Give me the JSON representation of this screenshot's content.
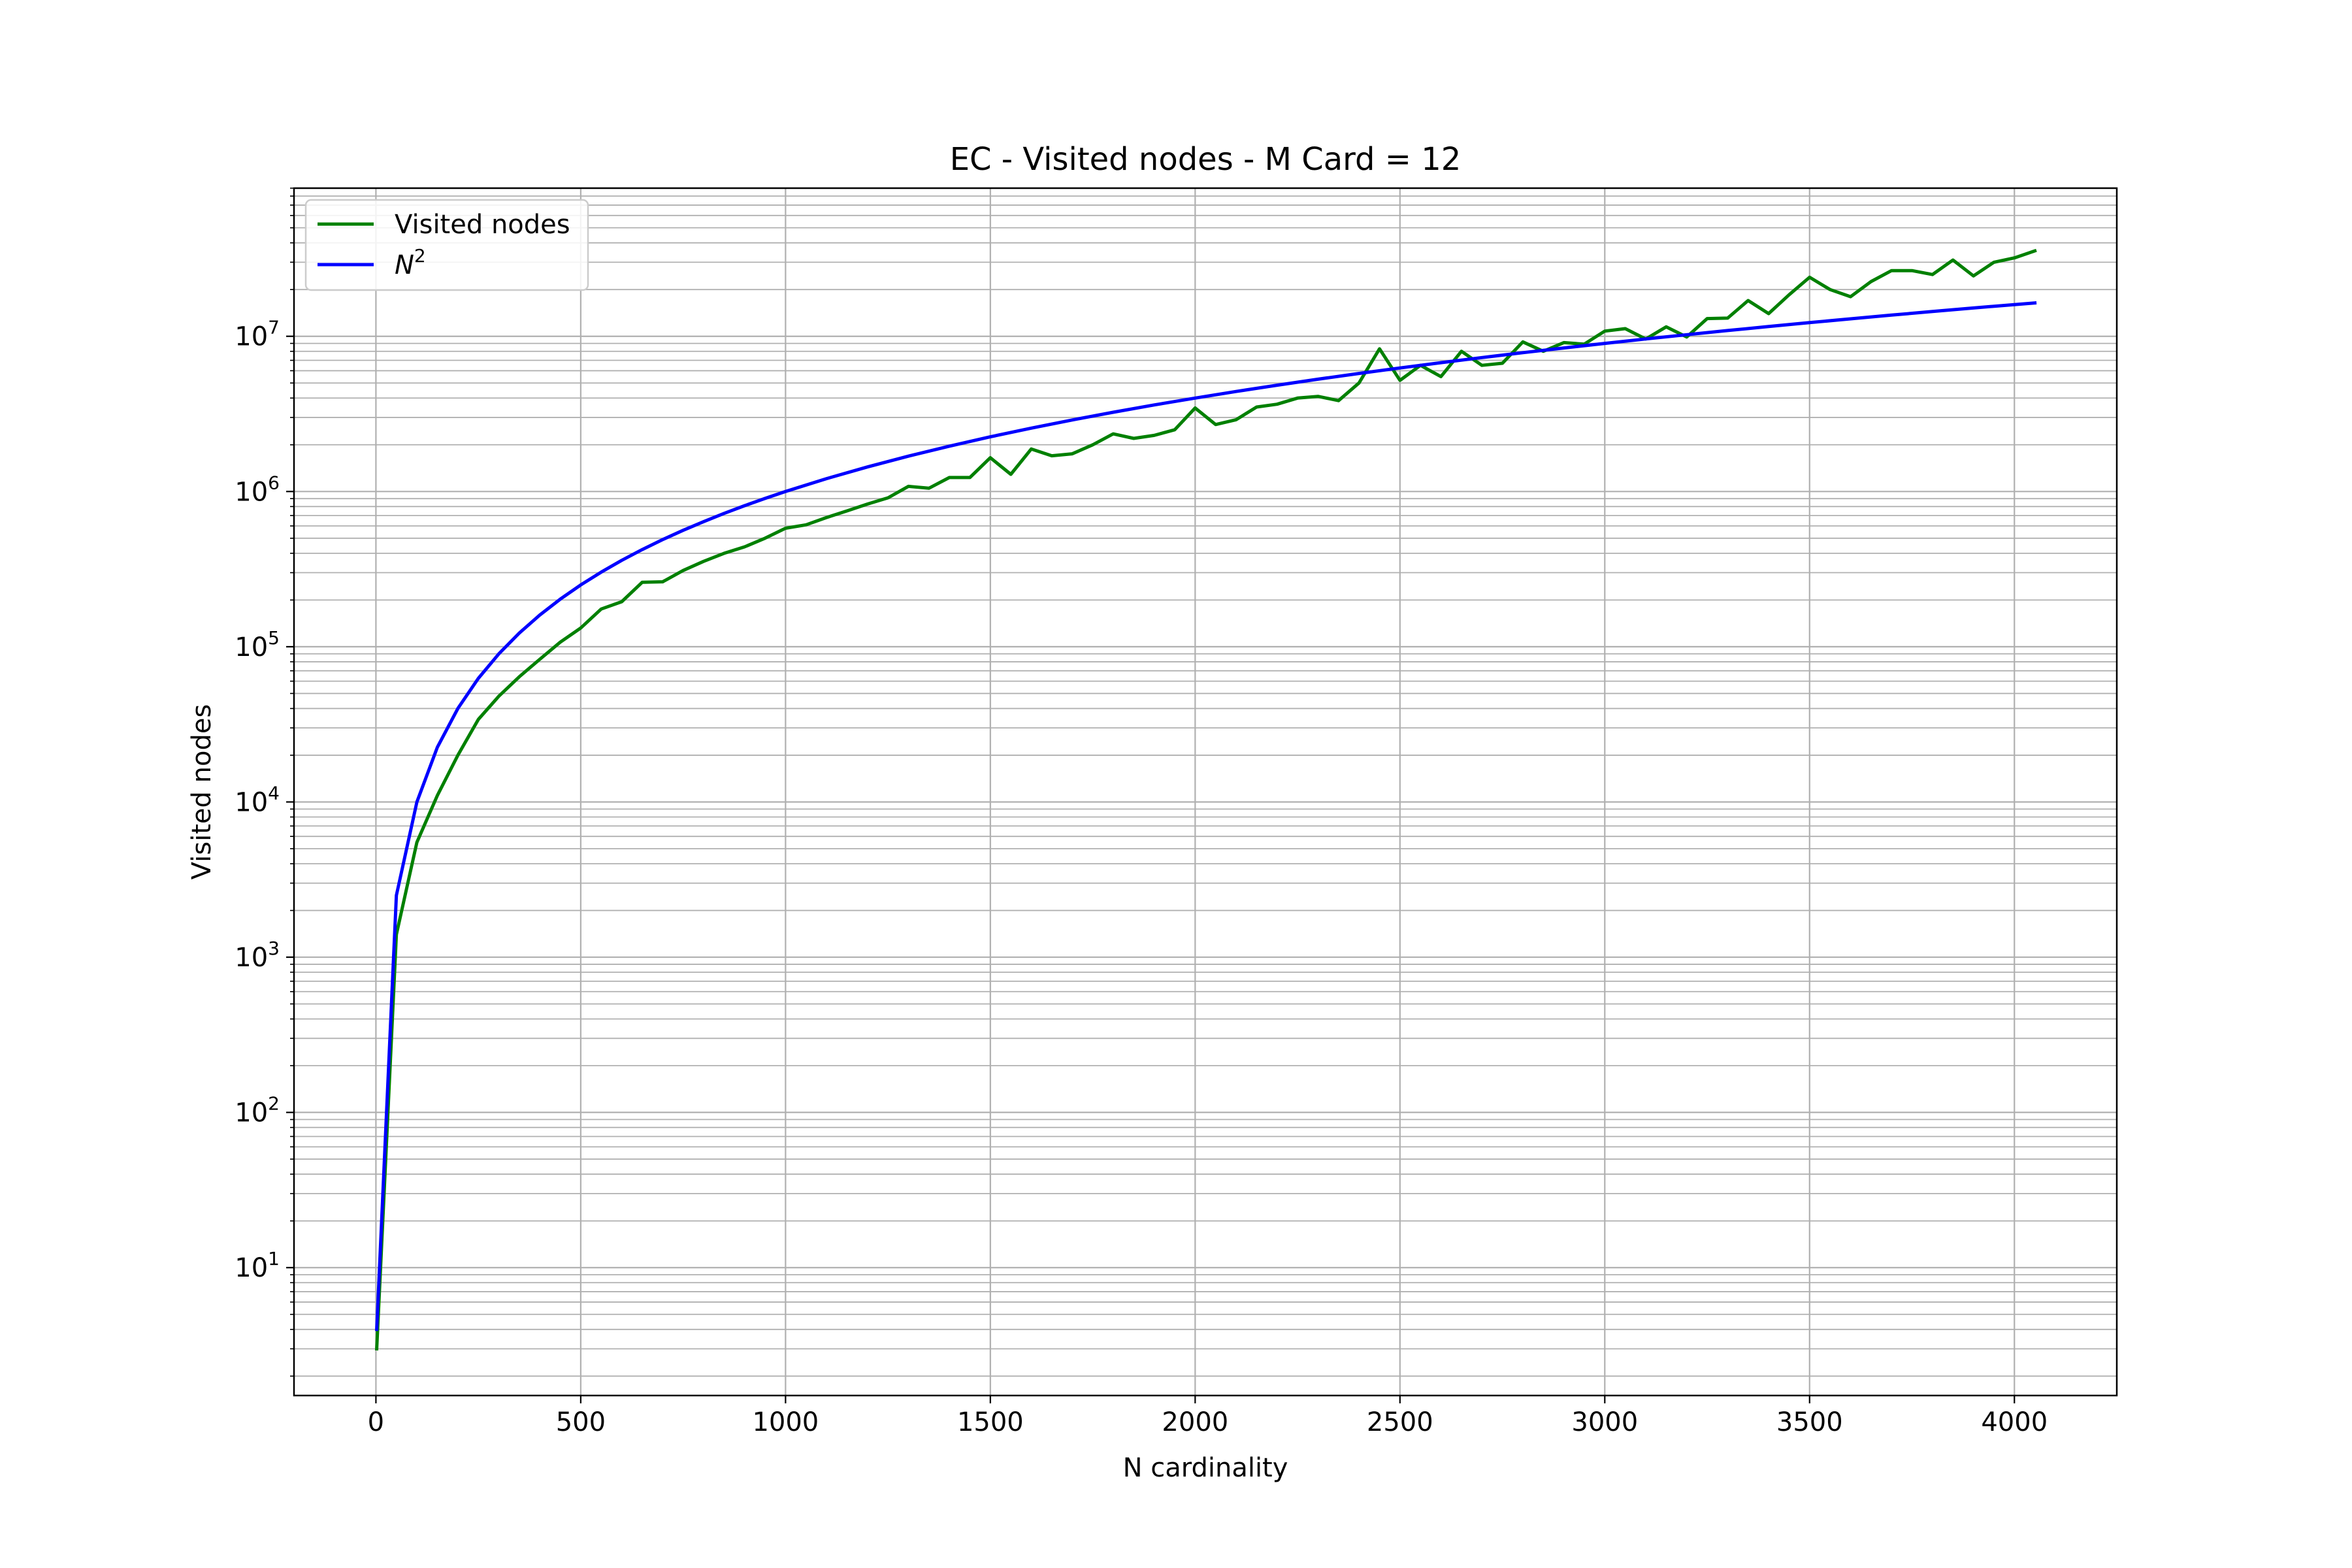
{
  "chart_data": {
    "type": "line",
    "title": "EC - Visited nodes - M Card = 12",
    "xlabel": "N cardinality",
    "ylabel": "Visited nodes",
    "xlim": [
      -200,
      4250
    ],
    "ylim": [
      1.5,
      90000000
    ],
    "yscale": "log",
    "grid": true,
    "legend_position": "upper left",
    "x_ticks": [
      0,
      500,
      1000,
      1500,
      2000,
      2500,
      3000,
      3500,
      4000
    ],
    "x_tick_labels": [
      "0",
      "500",
      "1000",
      "1500",
      "2000",
      "2500",
      "3000",
      "3500",
      "4000"
    ],
    "y_ticks": [
      10,
      100,
      1000,
      10000,
      100000,
      1000000,
      10000000
    ],
    "y_tick_labels": [
      {
        "base": "10",
        "exp": "1"
      },
      {
        "base": "10",
        "exp": "2"
      },
      {
        "base": "10",
        "exp": "3"
      },
      {
        "base": "10",
        "exp": "4"
      },
      {
        "base": "10",
        "exp": "5"
      },
      {
        "base": "10",
        "exp": "6"
      },
      {
        "base": "10",
        "exp": "7"
      }
    ],
    "series": [
      {
        "name": "Visited nodes",
        "color": "#008000",
        "x": [
          2,
          50,
          100,
          150,
          200,
          250,
          300,
          350,
          400,
          450,
          500,
          550,
          600,
          650,
          700,
          750,
          800,
          850,
          900,
          950,
          1000,
          1050,
          1100,
          1150,
          1200,
          1250,
          1300,
          1350,
          1400,
          1450,
          1500,
          1550,
          1600,
          1650,
          1700,
          1750,
          1800,
          1850,
          1900,
          1950,
          2000,
          2050,
          2100,
          2150,
          2200,
          2250,
          2300,
          2350,
          2400,
          2450,
          2500,
          2550,
          2600,
          2650,
          2700,
          2750,
          2800,
          2850,
          2900,
          2950,
          3000,
          3050,
          3100,
          3150,
          3200,
          3250,
          3300,
          3350,
          3400,
          3450,
          3500,
          3550,
          3600,
          3650,
          3700,
          3750,
          3800,
          3850,
          3900,
          3950,
          4000,
          4050
        ],
        "y": [
          3,
          1400,
          5500,
          11000,
          20000,
          34000,
          48000,
          64000,
          83000,
          107000,
          132000,
          175000,
          195000,
          260000,
          262000,
          310000,
          355000,
          400000,
          440000,
          500000,
          580000,
          610000,
          680000,
          750000,
          830000,
          910000,
          1080000,
          1050000,
          1230000,
          1230000,
          1650000,
          1290000,
          1880000,
          1700000,
          1750000,
          2000000,
          2350000,
          2200000,
          2300000,
          2500000,
          3450000,
          2700000,
          2900000,
          3500000,
          3650000,
          4000000,
          4100000,
          3850000,
          5000000,
          8300000,
          5200000,
          6500000,
          5500000,
          8000000,
          6500000,
          6700000,
          9200000,
          8000000,
          9100000,
          8900000,
          10800000,
          11200000,
          9600000,
          11500000,
          9900000,
          13000000,
          13100000,
          17000000,
          14000000,
          18500000,
          24000000,
          20000000,
          18000000,
          22500000,
          26500000,
          26500000,
          25000000,
          31000000,
          24500000,
          30000000,
          32000000,
          35500000
        ]
      },
      {
        "name": "N²",
        "color": "#0000ff",
        "x": [
          2,
          50,
          100,
          150,
          200,
          250,
          300,
          350,
          400,
          450,
          500,
          550,
          600,
          650,
          700,
          750,
          800,
          850,
          900,
          950,
          1000,
          1100,
          1200,
          1300,
          1400,
          1500,
          1600,
          1700,
          1800,
          1900,
          2000,
          2100,
          2200,
          2300,
          2400,
          2500,
          2600,
          2700,
          2800,
          2900,
          3000,
          3100,
          3200,
          3300,
          3400,
          3500,
          3600,
          3700,
          3800,
          3900,
          4000,
          4050
        ],
        "y": [
          4,
          2500,
          10000,
          22500,
          40000,
          62500,
          90000,
          122500,
          160000,
          202500,
          250000,
          302500,
          360000,
          422500,
          490000,
          562500,
          640000,
          722500,
          810000,
          902500,
          1000000,
          1210000,
          1440000,
          1690000,
          1960000,
          2250000,
          2560000,
          2890000,
          3240000,
          3610000,
          4000000,
          4410000,
          4840000,
          5290000,
          5760000,
          6250000,
          6760000,
          7290000,
          7840000,
          8410000,
          9000000,
          9610000,
          10240000,
          10890000,
          11560000,
          12250000,
          12960000,
          13690000,
          14440000,
          15210000,
          16000000,
          16402500
        ]
      }
    ],
    "legend": [
      {
        "label": "Visited nodes",
        "color": "#008000"
      },
      {
        "label_base": "N",
        "label_exp": "2",
        "color": "#0000ff"
      }
    ]
  }
}
